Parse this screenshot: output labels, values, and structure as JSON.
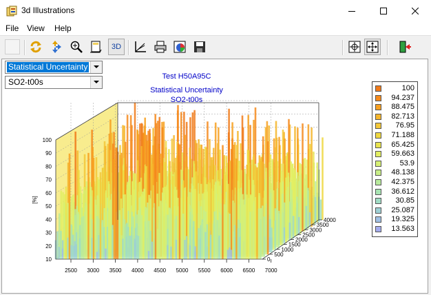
{
  "window": {
    "title": "3d Illustrations"
  },
  "menu": {
    "file": "File",
    "view": "View",
    "help": "Help"
  },
  "toolbar": {
    "btn_3d": "3D"
  },
  "selectors": {
    "statistic_value": "Statistical Uncertainty",
    "channel_value": "SO2-t00s"
  },
  "chart_data": {
    "type": "surface",
    "title_lines": [
      "Test H50A95C",
      "Statistical Uncertainty",
      "SO2-t00s"
    ],
    "z_label": "[%]",
    "z_ticks": [
      10,
      20,
      30,
      40,
      50,
      60,
      70,
      80,
      90,
      100
    ],
    "x_ticks": [
      2500,
      3000,
      3500,
      4000,
      4500,
      5000,
      5500,
      6000,
      6500,
      7000
    ],
    "y_ticks": [
      0,
      500,
      1000,
      1500,
      2000,
      2500,
      3000,
      3500,
      4000
    ],
    "z_range": [
      10,
      100
    ],
    "legend": {
      "placement": "right",
      "entries": [
        {
          "value": "100",
          "color": "#f07a1a"
        },
        {
          "value": "94.237",
          "color": "#f58a1c"
        },
        {
          "value": "88.475",
          "color": "#f7a020"
        },
        {
          "value": "82.713",
          "color": "#f5b62c"
        },
        {
          "value": "76.95",
          "color": "#f3c83a"
        },
        {
          "value": "71.188",
          "color": "#efd840"
        },
        {
          "value": "65.425",
          "color": "#e9e44e"
        },
        {
          "value": "59.663",
          "color": "#e2ee62"
        },
        {
          "value": "53.9",
          "color": "#d6f074"
        },
        {
          "value": "48.138",
          "color": "#c8ee88"
        },
        {
          "value": "42.375",
          "color": "#b8ea9c"
        },
        {
          "value": "36.612",
          "color": "#a8e4b2"
        },
        {
          "value": "30.85",
          "color": "#a0dcc4"
        },
        {
          "value": "25.087",
          "color": "#9ed0d4"
        },
        {
          "value": "19.325",
          "color": "#a0c0e4"
        },
        {
          "value": "13.563",
          "color": "#a4acee"
        }
      ]
    }
  }
}
